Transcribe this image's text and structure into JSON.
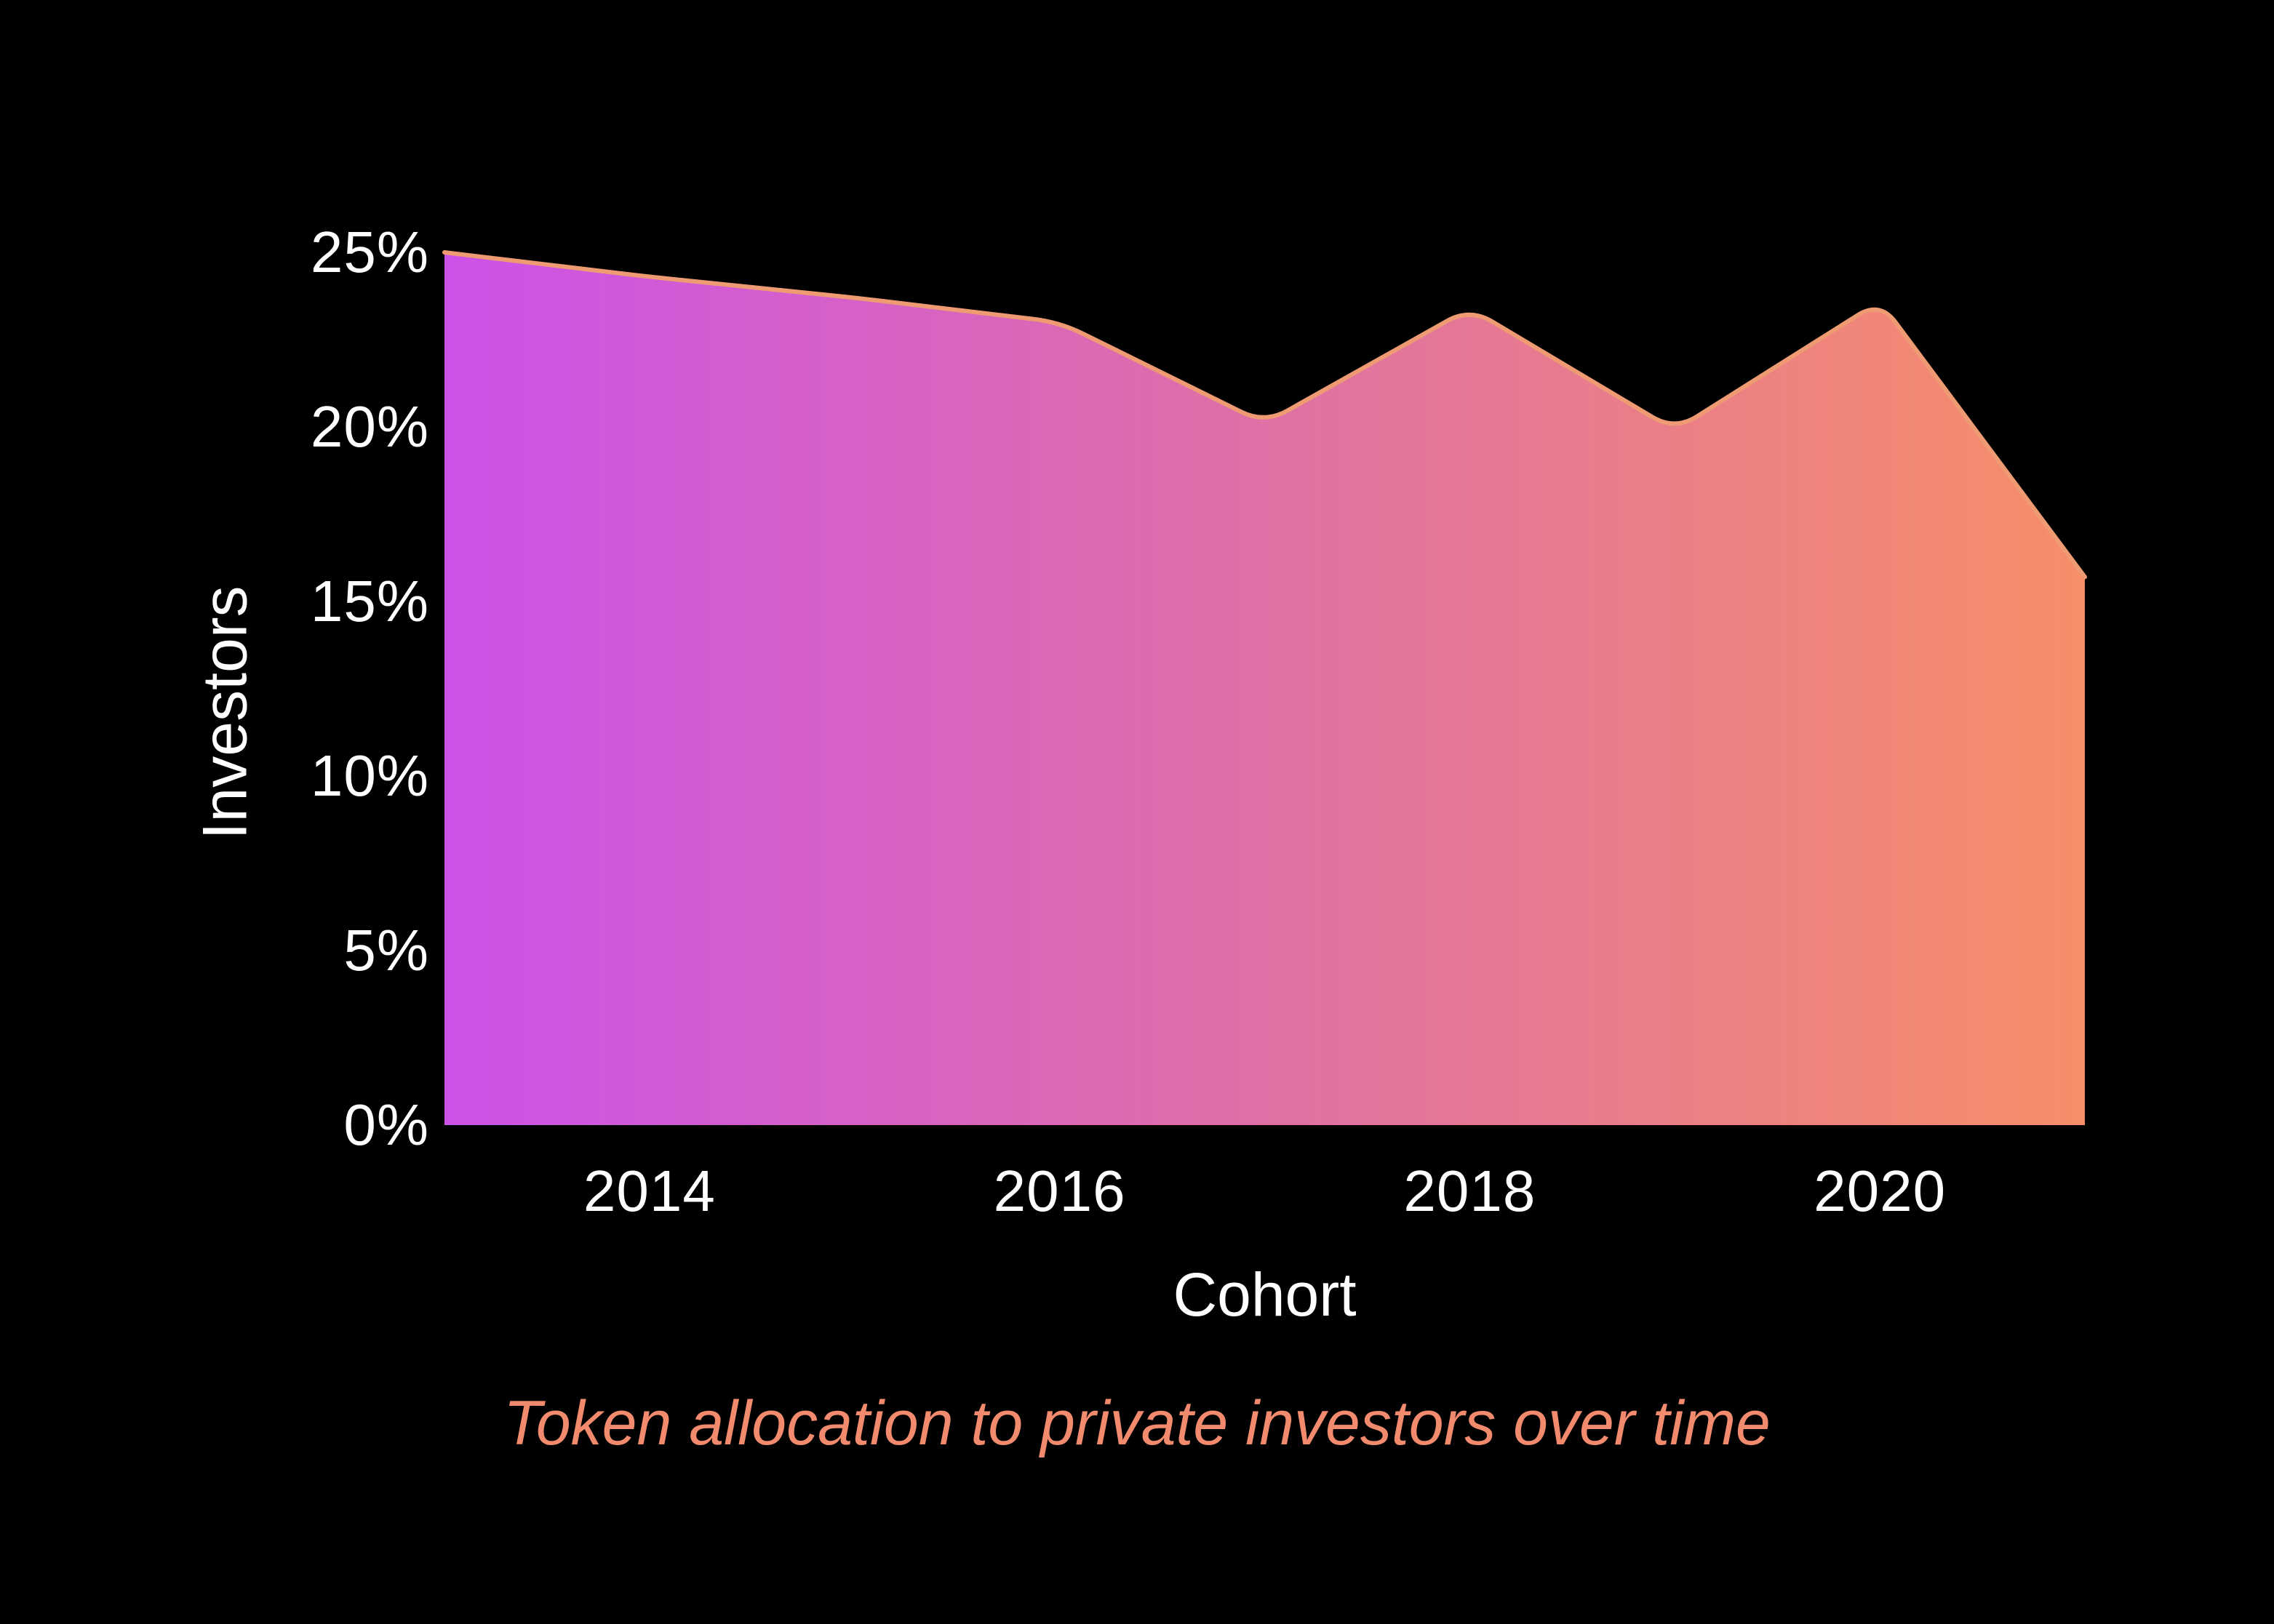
{
  "chart_data": {
    "type": "area",
    "x": [
      2013,
      2014,
      2015,
      2016,
      2017,
      2018,
      2019,
      2020,
      2021
    ],
    "values": [
      25,
      24.3,
      23.7,
      23,
      20.1,
      23.4,
      19.9,
      23.6,
      15.7
    ],
    "series_name": "Token allocation to private investors",
    "caption": "Token allocation to private investors over time",
    "xlabel": "Cohort",
    "ylabel": "Investors",
    "ylim": [
      0,
      25
    ],
    "yticks": [
      {
        "value": 0,
        "label": "0%"
      },
      {
        "value": 5,
        "label": "5%"
      },
      {
        "value": 10,
        "label": "10%"
      },
      {
        "value": 15,
        "label": "15%"
      },
      {
        "value": 20,
        "label": "20%"
      },
      {
        "value": 25,
        "label": "25%"
      }
    ],
    "xticks": [
      {
        "value": 2014,
        "label": "2014"
      },
      {
        "value": 2016,
        "label": "2016"
      },
      {
        "value": 2018,
        "label": "2018"
      },
      {
        "value": 2020,
        "label": "2020"
      }
    ],
    "grid": false,
    "legend": "none",
    "colors": {
      "background": "#000000",
      "gradient_start": "#cb52e8",
      "gradient_mid": "#df6fa6",
      "gradient_end": "#f78e69",
      "line": "#ee9b74",
      "tick_text": "#ffffff",
      "caption_text": "#f28b6e"
    }
  }
}
